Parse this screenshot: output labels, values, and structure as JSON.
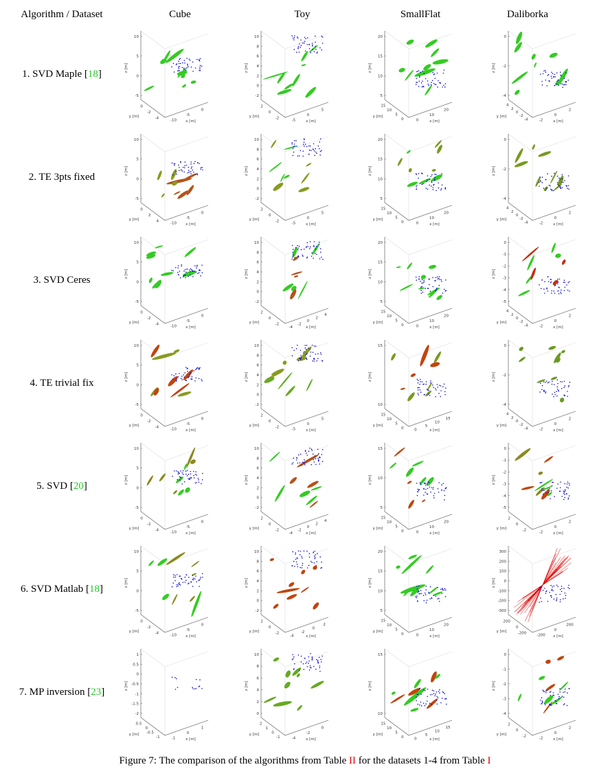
{
  "header": {
    "first": "Algorithm / Dataset",
    "columns": [
      "Cube",
      "Toy",
      "SmallFlat",
      "Daliborka"
    ]
  },
  "cite_open": "[",
  "cite_close": "]",
  "axis_labels": {
    "x": "x [m]",
    "y": "y [m]",
    "z": "z [m]"
  },
  "rows": [
    {
      "label": "1. SVD Maple",
      "cite": "18",
      "plots": [
        {
          "colors": [
            "#33cc22"
          ],
          "zticks": [
            10,
            5,
            0,
            -5
          ],
          "xticks": [
            -10,
            -5,
            0
          ],
          "yticks": [
            0,
            -2,
            -4
          ]
        },
        {
          "colors": [
            "#33cc22"
          ],
          "zticks": [
            10,
            8,
            6,
            4,
            2,
            0,
            -2
          ],
          "xticks": [
            -5,
            0,
            5
          ],
          "yticks": [
            2,
            0,
            -2
          ]
        },
        {
          "colors": [
            "#33cc22"
          ],
          "zticks": [
            20,
            15,
            10,
            5
          ],
          "xticks": [
            0,
            10,
            20
          ],
          "yticks": [
            15,
            10,
            5,
            0
          ]
        },
        {
          "colors": [
            "#33cc22"
          ],
          "zticks": [
            0,
            -2,
            -4
          ],
          "xticks": [
            -2,
            0,
            2
          ],
          "yticks": [
            4,
            2,
            0,
            -2,
            -4
          ]
        }
      ]
    },
    {
      "label": "2. TE 3pts fixed",
      "plots": [
        {
          "colors": [
            "#b5531c",
            "#8a9a20"
          ],
          "zticks": [
            10,
            5,
            0,
            -5
          ],
          "xticks": [
            -10,
            -5,
            0
          ],
          "yticks": [
            0,
            2,
            4
          ]
        },
        {
          "colors": [
            "#8a9a20",
            "#33cc22"
          ],
          "zticks": [
            10,
            8,
            6,
            4,
            2,
            0,
            -2
          ],
          "xticks": [
            -5,
            0,
            5
          ],
          "yticks": [
            2,
            0,
            -2
          ]
        },
        {
          "colors": [
            "#7a9a20",
            "#33cc22"
          ],
          "zticks": [
            20,
            15,
            10,
            5
          ],
          "xticks": [
            0,
            10,
            20
          ],
          "yticks": [
            15,
            10,
            5,
            0
          ]
        },
        {
          "colors": [
            "#7a9a20"
          ],
          "zticks": [
            0,
            -2,
            -4
          ],
          "xticks": [
            -2,
            0,
            2
          ],
          "yticks": [
            4,
            2,
            0,
            -2,
            -4
          ]
        }
      ]
    },
    {
      "label": "3. SVD Ceres",
      "plots": [
        {
          "colors": [
            "#33cc22"
          ],
          "zticks": [
            10,
            5,
            0,
            -5
          ],
          "xticks": [
            -10,
            -5,
            0
          ],
          "yticks": [
            0,
            -2,
            -4
          ]
        },
        {
          "colors": [
            "#33cc22",
            "#b5531c"
          ],
          "zticks": [
            10,
            8,
            6,
            4,
            2,
            0,
            -2
          ],
          "xticks": [
            -4,
            -2,
            0,
            2,
            4
          ],
          "yticks": [
            2,
            0,
            -2
          ]
        },
        {
          "colors": [
            "#33cc22"
          ],
          "zticks": [
            20,
            15,
            10,
            5
          ],
          "xticks": [
            0,
            10,
            20
          ],
          "yticks": [
            15,
            10,
            5,
            0
          ]
        },
        {
          "colors": [
            "#33cc22",
            "#c03010"
          ],
          "zticks": [
            0,
            -1,
            -2,
            -3,
            -4,
            -5
          ],
          "xticks": [
            -2,
            0,
            2
          ],
          "yticks": [
            4,
            2,
            0,
            -2,
            -4
          ]
        }
      ]
    },
    {
      "label": "4. TE trivial fix",
      "plots": [
        {
          "colors": [
            "#c2440e",
            "#8a9a20"
          ],
          "zticks": [
            10,
            5,
            0,
            -5
          ],
          "xticks": [
            -10,
            -5,
            0
          ],
          "yticks": [
            0,
            -2,
            -4
          ]
        },
        {
          "colors": [
            "#8a9a20",
            "#66aa22"
          ],
          "zticks": [
            10,
            8,
            6,
            4,
            2,
            0,
            -2
          ],
          "xticks": [
            -5,
            0,
            5
          ],
          "yticks": [
            2,
            0,
            -2
          ]
        },
        {
          "colors": [
            "#7a9a20",
            "#c2440e"
          ],
          "zticks": [
            15,
            10
          ],
          "xticks": [
            0,
            5,
            10,
            15
          ],
          "yticks": [
            15,
            10,
            5,
            0
          ]
        },
        {
          "colors": [
            "#6a9a20"
          ],
          "zticks": [
            0,
            -2,
            -4
          ],
          "xticks": [
            -2,
            0,
            2
          ],
          "yticks": [
            4,
            2,
            0,
            -2,
            -4
          ]
        }
      ]
    },
    {
      "label": "5. SVD",
      "cite": "20",
      "plots": [
        {
          "colors": [
            "#8a8a20",
            "#33cc22"
          ],
          "zticks": [
            10,
            5,
            0,
            -5
          ],
          "xticks": [
            -10,
            -5,
            0
          ],
          "yticks": [
            0,
            -2,
            -4
          ]
        },
        {
          "colors": [
            "#33cc22",
            "#b5531c"
          ],
          "zticks": [
            10,
            8,
            6,
            4,
            2,
            0,
            -2
          ],
          "xticks": [
            -4,
            -2,
            0,
            2,
            4
          ],
          "yticks": [
            2,
            0,
            -2
          ]
        },
        {
          "colors": [
            "#33cc22",
            "#c2440e"
          ],
          "zticks": [
            15,
            10,
            5
          ],
          "xticks": [
            0,
            10,
            20
          ],
          "yticks": [
            15,
            10,
            5,
            0
          ]
        },
        {
          "colors": [
            "#33cc22",
            "#8a8a20",
            "#c2440e"
          ],
          "zticks": [
            0,
            -1,
            -2,
            -3,
            -4,
            -5
          ],
          "xticks": [
            -2,
            0,
            2
          ],
          "yticks": [
            2,
            0,
            -2
          ]
        }
      ]
    },
    {
      "label": "6. SVD Matlab",
      "cite": "18",
      "plots": [
        {
          "colors": [
            "#8a8a20",
            "#33cc22"
          ],
          "zticks": [
            10,
            5,
            0,
            -5
          ],
          "xticks": [
            -10,
            -5,
            0
          ],
          "yticks": [
            0,
            -2,
            -4
          ]
        },
        {
          "colors": [
            "#c2440e"
          ],
          "zticks": [
            10,
            8,
            6,
            4,
            2,
            0,
            -2
          ],
          "xticks": [
            -4,
            -2,
            0,
            2
          ],
          "yticks": [
            2,
            0,
            -2
          ]
        },
        {
          "colors": [
            "#33cc22"
          ],
          "zticks": [
            20,
            15,
            10,
            5
          ],
          "xticks": [
            0,
            10,
            20
          ],
          "yticks": [
            15,
            10,
            5,
            0
          ]
        },
        {
          "colors": [
            "#dd0000"
          ],
          "lines": true,
          "zticks": [
            300,
            200,
            100,
            0,
            -100,
            -200,
            -300
          ],
          "xticks": [
            -200,
            0,
            200
          ],
          "yticks": [
            200,
            0,
            -200
          ]
        }
      ]
    },
    {
      "label": "7. MP inversion",
      "cite": "23",
      "plots": [
        {
          "colors": [],
          "zticks": [
            1,
            0.5,
            0,
            -0.5,
            -1,
            -1.5,
            -2
          ],
          "xticks": [
            -1,
            0,
            1
          ],
          "yticks": [
            0.5,
            0,
            -0.5,
            -1
          ]
        },
        {
          "colors": [
            "#66aa22"
          ],
          "zticks": [
            10,
            8,
            6,
            4,
            2,
            0
          ],
          "xticks": [
            -4,
            -2,
            0
          ],
          "yticks": [
            2,
            1,
            0,
            -1
          ]
        },
        {
          "colors": [
            "#33cc22",
            "#c2440e"
          ],
          "zticks": [
            15,
            10
          ],
          "xticks": [
            0,
            5,
            10,
            15
          ],
          "yticks": [
            15,
            10,
            5,
            0
          ]
        },
        {
          "colors": [
            "#33cc22",
            "#c2440e"
          ],
          "zticks": [
            0,
            -1,
            -2,
            -3,
            -4
          ],
          "xticks": [
            -2,
            0,
            2
          ],
          "yticks": [
            2,
            0,
            -2
          ]
        }
      ]
    }
  ],
  "caption": {
    "before": "Figure 7: The comparison of the algorithms from Table ",
    "ref1": "II",
    "middle": " for the datasets 1-4 from Table ",
    "ref2": "I"
  }
}
